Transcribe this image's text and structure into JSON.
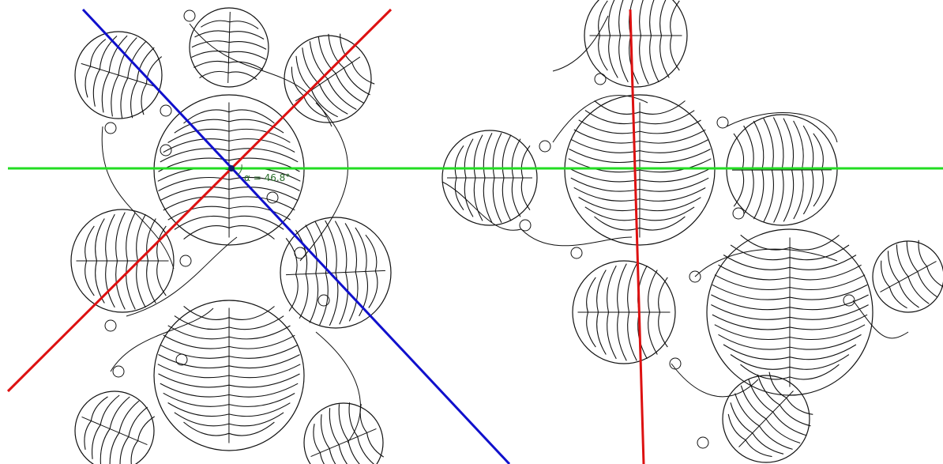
{
  "annotations": {
    "angle_label": "α = 46.8°"
  }
}
